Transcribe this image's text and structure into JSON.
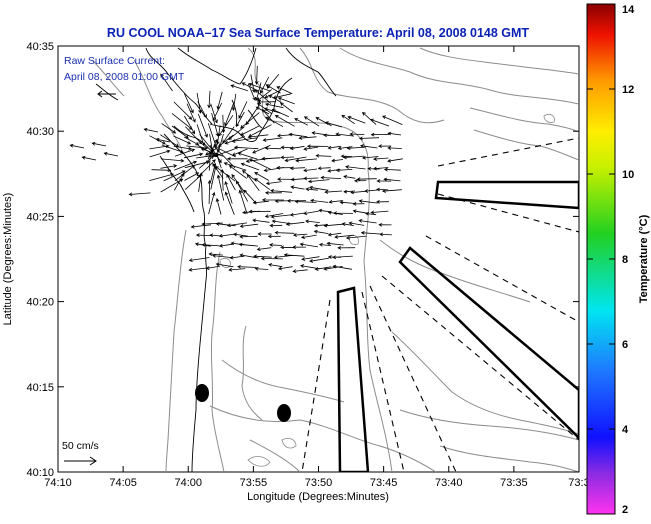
{
  "title": "RU COOL  NOAA–17  Sea Surface Temperature:  April 08, 2008 0148 GMT",
  "annotation": {
    "line1": "Raw Surface Current:",
    "line2": "April 08, 2008 01:00 GMT"
  },
  "scale_label": "50 cm/s",
  "x_axis": {
    "label": "Longitude (Degrees:Minutes)",
    "ticks": [
      "74:10",
      "74:05",
      "74:00",
      "73:55",
      "73:50",
      "73:45",
      "73:40",
      "73:35",
      "73:3"
    ]
  },
  "y_axis": {
    "label": "Latitude (Degrees:Minutes)",
    "ticks": [
      "40:35",
      "40:30",
      "40:25",
      "40:20",
      "40:15",
      "40:10"
    ]
  },
  "colorbar": {
    "label": "Temperature (°C)",
    "min": 2,
    "max": 14,
    "ticks": [
      "14",
      "12",
      "10",
      "8",
      "6",
      "4",
      "2"
    ]
  },
  "colors": {
    "title": "#0b22b4",
    "annotation": "#1a2fb0",
    "frame": "#000000",
    "coast": "#000000",
    "bathymetry": "#8c8c8c"
  }
}
